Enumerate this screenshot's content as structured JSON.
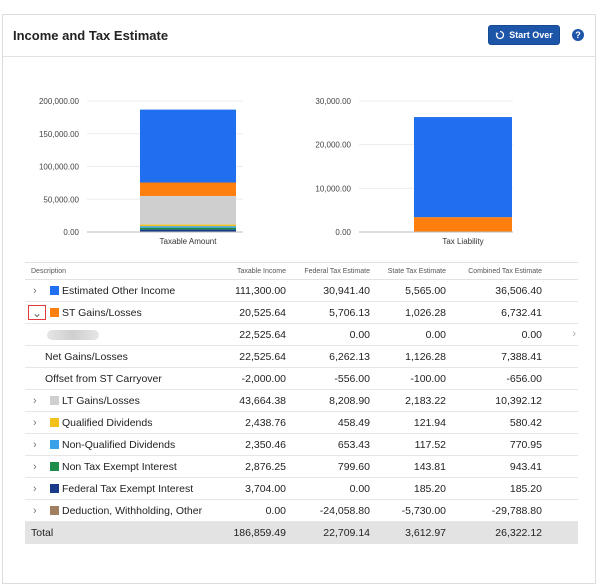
{
  "header": {
    "title": "Income and Tax Estimate",
    "start_over_label": "Start Over",
    "help_label": "?"
  },
  "chart_data": [
    {
      "type": "bar",
      "xlabel": "Taxable Amount",
      "ylim": [
        0,
        200000
      ],
      "yticks": [
        "200,000.00",
        "150,000.00",
        "100,000.00",
        "50,000.00",
        "0.00"
      ],
      "stacked": true,
      "series": [
        {
          "name": "Deduction, Withholding, Other",
          "value": 0,
          "color": "#a08060"
        },
        {
          "name": "Federal Tax Exempt Interest",
          "value": 3704,
          "color": "#1a3a8a"
        },
        {
          "name": "Non Tax Exempt Interest",
          "value": 2876.25,
          "color": "#1e8c4a"
        },
        {
          "name": "Non-Qualified Dividends",
          "value": 2350.46,
          "color": "#3aa0e8"
        },
        {
          "name": "Qualified Dividends",
          "value": 2438.76,
          "color": "#f2c21b"
        },
        {
          "name": "LT Gains/Losses",
          "value": 43664.38,
          "color": "#cfcfcf"
        },
        {
          "name": "ST Gains/Losses",
          "value": 20525.64,
          "color": "#ff7f0e"
        },
        {
          "name": "Estimated Other Income",
          "value": 111300,
          "color": "#1f6ff0"
        }
      ]
    },
    {
      "type": "bar",
      "xlabel": "Tax Liability",
      "ylim": [
        0,
        30000
      ],
      "yticks": [
        "30,000.00",
        "20,000.00",
        "10,000.00",
        "0.00"
      ],
      "stacked": true,
      "series": [
        {
          "name": "ST Gains/Losses",
          "value": 3400,
          "color": "#ff7f0e"
        },
        {
          "name": "Estimated Other Income",
          "value": 22922.12,
          "color": "#1f6ff0"
        }
      ]
    }
  ],
  "table": {
    "columns": [
      "Description",
      "Taxable Income",
      "Federal Tax Estimate",
      "State Tax Estimate",
      "Combined Tax Estimate"
    ],
    "rows": [
      {
        "label": "Estimated Other Income",
        "color": "#1f6ff0",
        "values": [
          "111,300.00",
          "30,941.40",
          "5,565.00",
          "36,506.40"
        ],
        "chevron": "›"
      },
      {
        "label": "ST Gains/Losses",
        "color": "#ff7f0e",
        "values": [
          "20,525.64",
          "5,706.13",
          "1,026.28",
          "6,732.41"
        ],
        "chevron": "⌄",
        "expanded": true
      },
      {
        "label": "",
        "values": [
          "22,525.64",
          "0.00",
          "0.00",
          "0.00"
        ],
        "sub": "blur",
        "row_chevron": "›"
      },
      {
        "label": "Net Gains/Losses",
        "values": [
          "22,525.64",
          "6,262.13",
          "1,126.28",
          "7,388.41"
        ],
        "sub": true
      },
      {
        "label": "Offset from ST Carryover",
        "values": [
          "-2,000.00",
          "-556.00",
          "-100.00",
          "-656.00"
        ],
        "sub": true
      },
      {
        "label": "LT Gains/Losses",
        "color": "#cfcfcf",
        "values": [
          "43,664.38",
          "8,208.90",
          "2,183.22",
          "10,392.12"
        ],
        "chevron": "›"
      },
      {
        "label": "Qualified Dividends",
        "color": "#f2c21b",
        "values": [
          "2,438.76",
          "458.49",
          "121.94",
          "580.42"
        ],
        "chevron": "›"
      },
      {
        "label": "Non-Qualified Dividends",
        "color": "#3aa0e8",
        "values": [
          "2,350.46",
          "653.43",
          "117.52",
          "770.95"
        ],
        "chevron": "›"
      },
      {
        "label": "Non Tax Exempt Interest",
        "color": "#1e8c4a",
        "values": [
          "2,876.25",
          "799.60",
          "143.81",
          "943.41"
        ],
        "chevron": "›"
      },
      {
        "label": "Federal Tax Exempt Interest",
        "color": "#1a3a8a",
        "values": [
          "3,704.00",
          "0.00",
          "185.20",
          "185.20"
        ],
        "chevron": "›"
      },
      {
        "label": "Deduction, Withholding, Other",
        "color": "#a08060",
        "values": [
          "0.00",
          "-24,058.80",
          "-5,730.00",
          "-29,788.80"
        ],
        "chevron": "›"
      }
    ],
    "total": {
      "label": "Total",
      "values": [
        "186,859.49",
        "22,709.14",
        "3,612.97",
        "26,322.12"
      ]
    }
  }
}
